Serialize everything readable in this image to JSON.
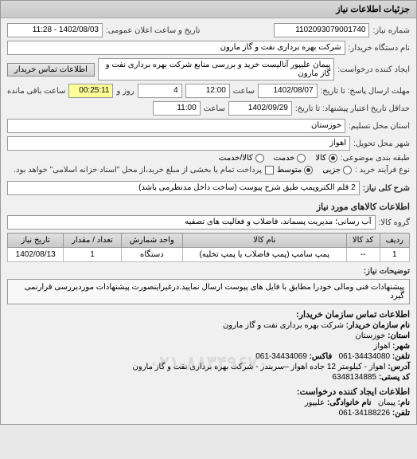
{
  "header": {
    "title": "جزئیات اطلاعات نیاز"
  },
  "top": {
    "request_no_label": "شماره نیاز:",
    "request_no": "1102093079001740",
    "datetime_label": "تاریخ و ساعت اعلان عمومی:",
    "datetime": "1402/08/03 - 11:28",
    "buyer_org_label": "نام دستگاه خریدار:",
    "buyer_org": "شرکت بهره برداری نفت و گاز مارون",
    "creator_label": "ایجاد کننده درخواست:",
    "creator": "پیمان علیپور آنالیست خرید و بررسی منابع شرکت بهره برداری نفت و گاز مارون",
    "buyer_contact_btn": "اطلاعات تماس خریدار"
  },
  "dates": {
    "reply_deadline_label": "مهلت ارسال پاسخ: تا تاریخ:",
    "reply_date": "1402/08/07",
    "reply_time_label": "ساعت",
    "reply_time": "12:00",
    "remain_label": "روز و",
    "remain_days": "4",
    "remain_time_label": "ساعت باقی مانده",
    "remain_time": "00:25:11",
    "validity_label": "حداقل تاریخ اعتبار پیشنهاد: تا تاریخ:",
    "validity_date": "1402/09/29",
    "validity_time_label": "ساعت",
    "validity_time": "11:00"
  },
  "location": {
    "province_label": "استان محل تسلیم:",
    "province": "خوزستان",
    "city_label": "شهر محل تحویل:",
    "city": "اهواز"
  },
  "classification": {
    "subject_group_label": "طبقه بندی موضوعی:",
    "opt_goods": "کالا",
    "opt_service": "خدمت",
    "opt_goods_service": "کالا/خدمت",
    "selected": "goods",
    "purchase_type_label": "نوع فرآیند خرید :",
    "opt_small": "جزیی",
    "opt_medium": "متوسط",
    "selected_size": "medium",
    "payment_note": "پرداخت تمام یا بخشی از مبلغ خرید،از محل \"اسناد خزانه اسلامی\" خواهد بود."
  },
  "need": {
    "overall_label": "شرح کلی نیاز:",
    "overall_desc": "2 قلم الکتروپمپ طبق شرح پیوست (ساخت داخل مدنظرمی باشد)"
  },
  "goods_section": {
    "title": "اطلاعات کالاهای مورد نیاز",
    "group_label": "گروه کالا:",
    "group_value": "آب رسانی؛ مدیریت پسماند، فاضلاب و فعالیت های تصفیه"
  },
  "table": {
    "columns": [
      "ردیف",
      "کد کالا",
      "نام کالا",
      "واحد شمارش",
      "تعداد / مقدار",
      "تاریخ نیاز"
    ],
    "rows": [
      [
        "1",
        "--",
        "پمپ سامپ (پمپ فاضلاب یا پمپ تخلیه)",
        "دستگاه",
        "1",
        "1402/08/13"
      ]
    ]
  },
  "remarks": {
    "label": "توضیحات نیاز:",
    "text": "پیشنهادات فنی ومالی خودرا مطابق با فایل های پیوست ارسال نمایید.درغیراینصورت پیشنهادات موردبررسی قرارنمی گیرد"
  },
  "contact": {
    "section_title": "اطلاعات تماس سازمان خریدار:",
    "org_label": "نام سازمان خریدار:",
    "org": "شرکت بهره برداری نفت و گاز مارون",
    "province_label": "استان:",
    "province": "خوزستان",
    "city_label": "شهر:",
    "city": "اهواز",
    "phone_label": "تلفن:",
    "phone": "34434080-061",
    "fax_label": "فاکس:",
    "fax": "34434069-061",
    "address_label": "آدرس:",
    "address": "اهواز - کیلومتر 12 جاده اهواز –سربندر - شرکت بهره برداری نفت و گاز مارون",
    "postal_label": "کد پستی:",
    "postal": "6348134885",
    "creator_section": "اطلاعات ایجاد کننده درخواست:",
    "name_label": "نام:",
    "name": "پیمان",
    "lastname_label": "نام خانوادگی:",
    "lastname": "علیپور",
    "creator_phone_label": "تلفن:",
    "creator_phone": "34188226-061"
  },
  "watermark": "۰۲۱-۸۸۳۴۹۶۷۰",
  "colors": {
    "bg": "#f0f0f0",
    "header_grad1": "#d8d8d8",
    "header_grad2": "#c8c8c8",
    "border": "#999",
    "yellow": "#ffff99"
  }
}
